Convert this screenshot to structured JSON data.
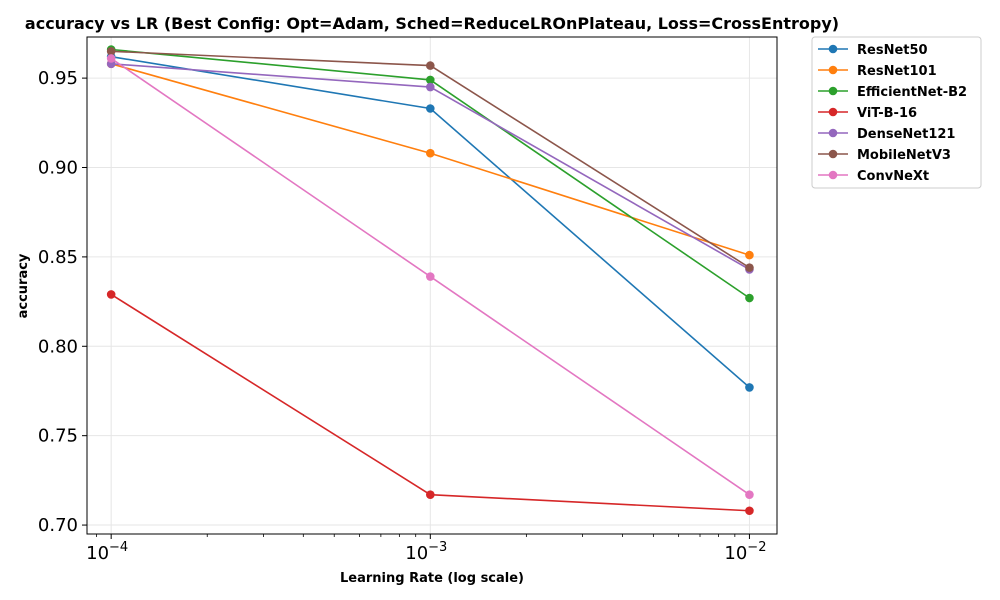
{
  "chart_data": {
    "type": "line",
    "title": "accuracy vs LR (Best Config: Opt=Adam, Sched=ReduceLROnPlateau, Loss=CrossEntropy)",
    "xlabel": "Learning Rate (log scale)",
    "ylabel": "accuracy",
    "x_scale": "log",
    "x": [
      0.0001,
      0.001,
      0.01
    ],
    "x_tick_labels": [
      {
        "value": 0.0001,
        "base": "10",
        "exp": "−4"
      },
      {
        "value": 0.001,
        "base": "10",
        "exp": "−3"
      },
      {
        "value": 0.01,
        "base": "10",
        "exp": "−2"
      }
    ],
    "y_ticks": [
      0.7,
      0.75,
      0.8,
      0.85,
      0.9,
      0.95
    ],
    "y_tick_labels": [
      "0.70",
      "0.75",
      "0.80",
      "0.85",
      "0.90",
      "0.95"
    ],
    "ylim": [
      0.695,
      0.973
    ],
    "xlim": [
      8.4e-05,
      0.0122
    ],
    "grid": true,
    "legend_position": "outside-top-right",
    "series": [
      {
        "name": "ResNet50",
        "color": "#1f77b4",
        "values": [
          0.962,
          0.933,
          0.777
        ]
      },
      {
        "name": "ResNet101",
        "color": "#ff7f0e",
        "values": [
          0.958,
          0.908,
          0.851
        ]
      },
      {
        "name": "EfficientNet-B2",
        "color": "#2ca02c",
        "values": [
          0.966,
          0.949,
          0.827
        ]
      },
      {
        "name": "ViT-B-16",
        "color": "#d62728",
        "values": [
          0.829,
          0.717,
          0.708
        ]
      },
      {
        "name": "DenseNet121",
        "color": "#9467bd",
        "values": [
          0.958,
          0.945,
          0.843
        ]
      },
      {
        "name": "MobileNetV3",
        "color": "#8c564b",
        "values": [
          0.965,
          0.957,
          0.844
        ]
      },
      {
        "name": "ConvNeXt",
        "color": "#e377c2",
        "values": [
          0.961,
          0.839,
          0.717
        ]
      }
    ]
  }
}
